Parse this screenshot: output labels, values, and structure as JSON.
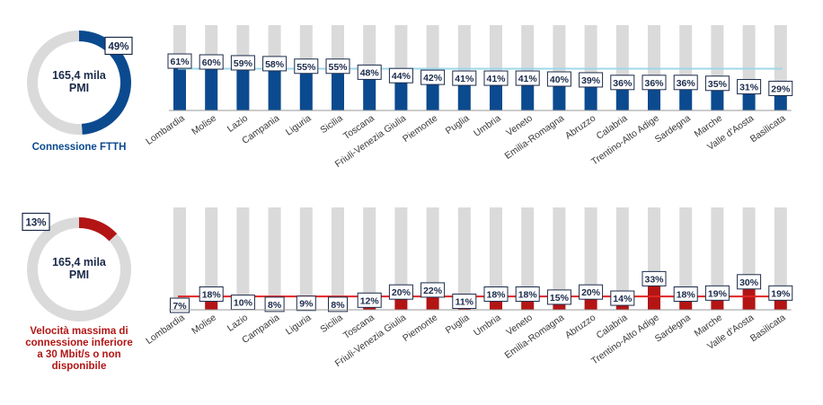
{
  "chart_data": [
    {
      "type": "pie",
      "center_label": "165,4 mila\nPMI",
      "caption": "Connessione FTTH",
      "values": [
        49,
        51
      ],
      "value_label": "49%",
      "colors": [
        "#0b4a8f",
        "#dadada"
      ]
    },
    {
      "type": "bar",
      "categories": [
        "Lombardia",
        "Molise",
        "Lazio",
        "Campania",
        "Liguria",
        "Sicilia",
        "Toscana",
        "Friuli-Venezia Giulia",
        "Piemonte",
        "Puglia",
        "Umbria",
        "Veneto",
        "Emilia-Romagna",
        "Abruzzo",
        "Calabria",
        "Trentino-Alto Adige",
        "Sardegna",
        "Marche",
        "Valle d'Aosta",
        "Basilicata"
      ],
      "values": [
        61,
        60,
        59,
        58,
        55,
        55,
        48,
        44,
        42,
        41,
        41,
        41,
        40,
        39,
        36,
        36,
        36,
        35,
        31,
        29
      ],
      "labels": [
        "61%",
        "60%",
        "59%",
        "58%",
        "55%",
        "55%",
        "48%",
        "44%",
        "42%",
        "41%",
        "41%",
        "41%",
        "40%",
        "39%",
        "36%",
        "36%",
        "36%",
        "35%",
        "31%",
        "29%"
      ],
      "ylim": [
        0,
        100
      ],
      "average": 49,
      "colors": {
        "bar": "#0b4a8f",
        "background": "#dadada",
        "average_line": "#9fd8ea"
      }
    },
    {
      "type": "pie",
      "center_label": "165,4 mila\nPMI",
      "caption": "Velocità massima di\nconnessione inferiore\na 30 Mbit/s o non\ndisponibile",
      "values": [
        13,
        87
      ],
      "value_label": "13%",
      "colors": [
        "#b31515",
        "#dadada"
      ]
    },
    {
      "type": "bar",
      "categories": [
        "Lombardia",
        "Molise",
        "Lazio",
        "Campania",
        "Liguria",
        "Sicilia",
        "Toscana",
        "Friuli-Venezia Giulia",
        "Piemonte",
        "Puglia",
        "Umbria",
        "Veneto",
        "Emilia-Romagna",
        "Abruzzo",
        "Calabria",
        "Trentino-Alto Adige",
        "Sardegna",
        "Marche",
        "Valle d'Aosta",
        "Basilicata"
      ],
      "values": [
        7,
        18,
        10,
        8,
        9,
        8,
        12,
        20,
        22,
        11,
        18,
        18,
        15,
        20,
        14,
        33,
        18,
        19,
        30,
        19
      ],
      "labels": [
        "7%",
        "18%",
        "10%",
        "8%",
        "9%",
        "8%",
        "12%",
        "20%",
        "22%",
        "11%",
        "18%",
        "18%",
        "15%",
        "20%",
        "14%",
        "33%",
        "18%",
        "19%",
        "30%",
        "19%"
      ],
      "ylim": [
        0,
        100
      ],
      "average": 13,
      "colors": {
        "bar": "#b31515",
        "background": "#dadada",
        "average_line": "#e02626"
      }
    }
  ]
}
